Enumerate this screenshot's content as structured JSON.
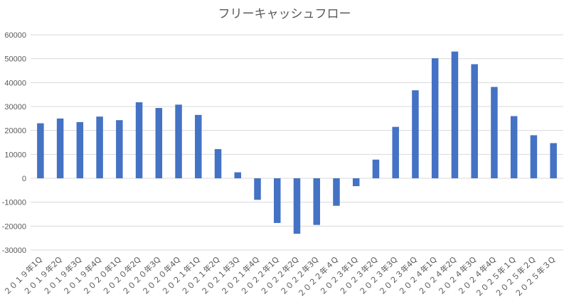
{
  "chart_data": {
    "type": "bar",
    "title": "フリーキャッシュフロー",
    "xlabel": "",
    "ylabel": "",
    "ylim": [
      -30000,
      60000
    ],
    "yticks": [
      60000,
      50000,
      40000,
      30000,
      20000,
      10000,
      0,
      -10000,
      -20000,
      -30000
    ],
    "ytick_labels": [
      "60000",
      "50000",
      "40000",
      "30000",
      "20000",
      "10000",
      "0",
      "-10000",
      "-20000",
      "-30000"
    ],
    "grid": true,
    "legend": "none",
    "bar_color": "#4472c4",
    "categories": [
      "２０１９年1Q",
      "２０１９年2Q",
      "２０１９年3Q",
      "２０１９年4Q",
      "２０２０年1Q",
      "２０２０年2Q",
      "２０２０年3Q",
      "２０２０年4Q",
      "２０２１年1Q",
      "２０２１年2Q",
      "２０２１年3Q",
      "２０２１年4Q",
      "２０２２年1Q",
      "２０２２年2Q",
      "２０２２年3Q",
      "２０２２年４Q",
      "２０２３年1Q",
      "２０２３年2Q",
      "２０２３年3Q",
      "２０２３年4Q",
      "２０２４年1Q",
      "２０２４年2Q",
      "２０２４年3Q",
      "２０２４年4Q",
      "２０２５年１Q",
      "２０２５年２Q",
      "２０２５年３Q"
    ],
    "values": [
      23000,
      25000,
      23500,
      25800,
      24300,
      31800,
      29400,
      30800,
      26500,
      12200,
      2500,
      -9000,
      -18700,
      -23200,
      -19500,
      -11500,
      -3300,
      7800,
      21500,
      36800,
      50200,
      53000,
      47700,
      38200,
      26000,
      18000,
      14700
    ]
  }
}
